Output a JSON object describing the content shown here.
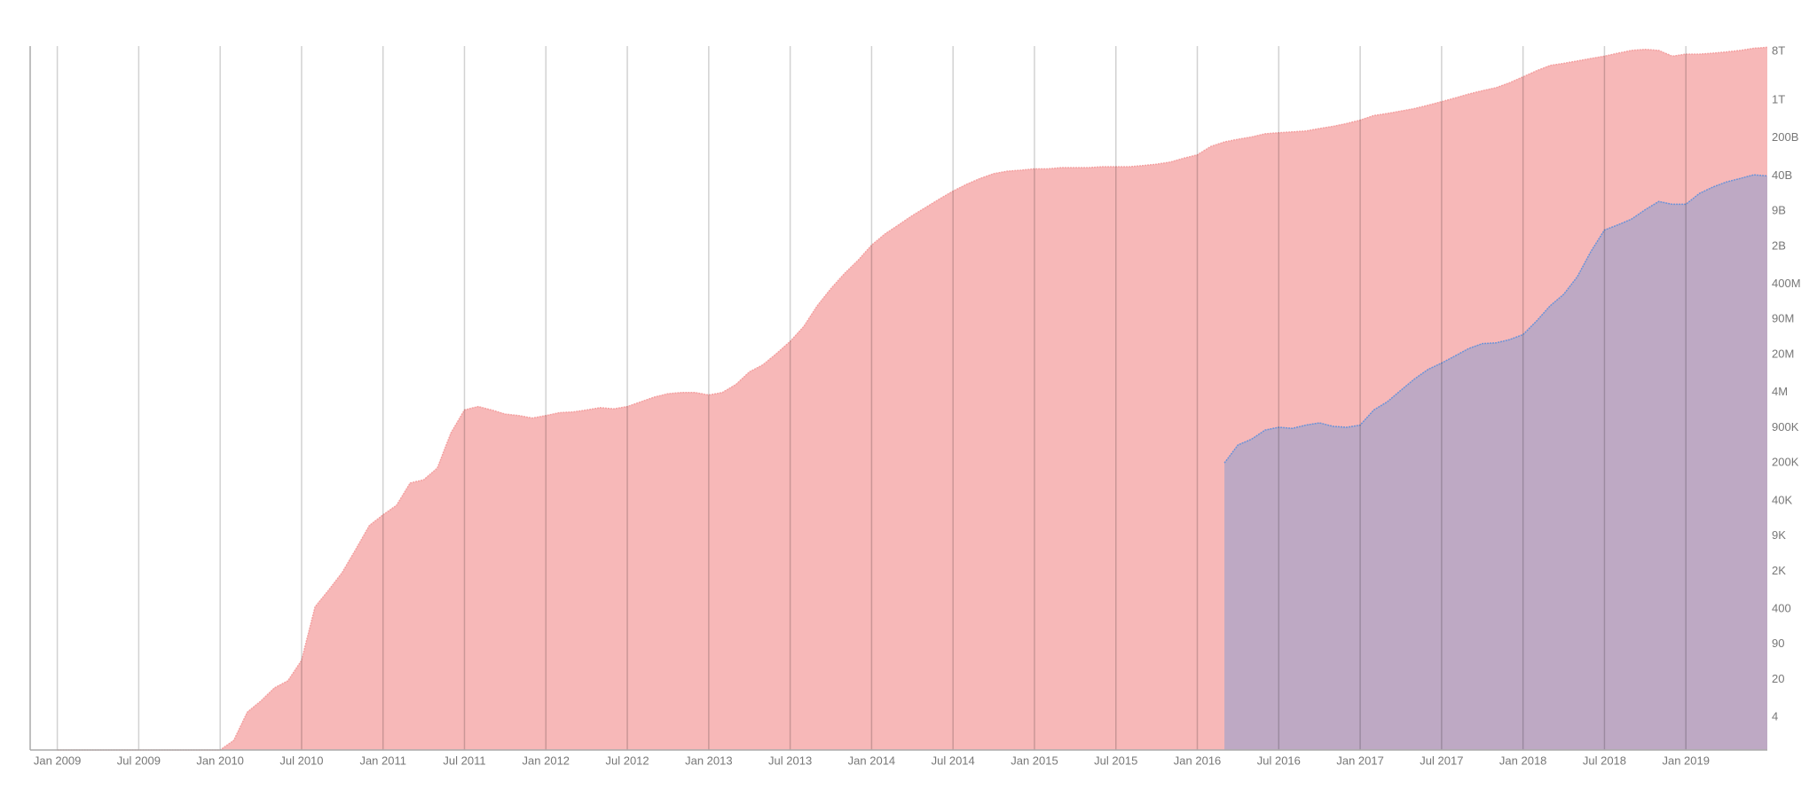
{
  "chart_data": {
    "type": "area",
    "x": [
      "2009-01",
      "2009-02",
      "2009-03",
      "2009-04",
      "2009-05",
      "2009-06",
      "2009-07",
      "2009-08",
      "2009-09",
      "2009-10",
      "2009-11",
      "2009-12",
      "2010-01",
      "2010-02",
      "2010-03",
      "2010-04",
      "2010-05",
      "2010-06",
      "2010-07",
      "2010-08",
      "2010-09",
      "2010-10",
      "2010-11",
      "2010-12",
      "2011-01",
      "2011-02",
      "2011-03",
      "2011-04",
      "2011-05",
      "2011-06",
      "2011-07",
      "2011-08",
      "2011-09",
      "2011-10",
      "2011-11",
      "2011-12",
      "2012-01",
      "2012-02",
      "2012-03",
      "2012-04",
      "2012-05",
      "2012-06",
      "2012-07",
      "2012-08",
      "2012-09",
      "2012-10",
      "2012-11",
      "2012-12",
      "2013-01",
      "2013-02",
      "2013-03",
      "2013-04",
      "2013-05",
      "2013-06",
      "2013-07",
      "2013-08",
      "2013-09",
      "2013-10",
      "2013-11",
      "2013-12",
      "2014-01",
      "2014-02",
      "2014-03",
      "2014-04",
      "2014-05",
      "2014-06",
      "2014-07",
      "2014-08",
      "2014-09",
      "2014-10",
      "2014-11",
      "2014-12",
      "2015-01",
      "2015-02",
      "2015-03",
      "2015-04",
      "2015-05",
      "2015-06",
      "2015-07",
      "2015-08",
      "2015-09",
      "2015-10",
      "2015-11",
      "2015-12",
      "2016-01",
      "2016-02",
      "2016-03",
      "2016-04",
      "2016-05",
      "2016-06",
      "2016-07",
      "2016-08",
      "2016-09",
      "2016-10",
      "2016-11",
      "2016-12",
      "2017-01",
      "2017-02",
      "2017-03",
      "2017-04",
      "2017-05",
      "2017-06",
      "2017-07",
      "2017-08",
      "2017-09",
      "2017-10",
      "2017-11",
      "2017-12",
      "2018-01",
      "2018-02",
      "2018-03",
      "2018-04",
      "2018-05",
      "2018-06",
      "2018-07",
      "2018-08",
      "2018-09",
      "2018-10",
      "2018-11",
      "2018-12",
      "2019-01",
      "2019-02",
      "2019-03",
      "2019-04",
      "2019-05",
      "2019-06",
      "2019-07"
    ],
    "series": [
      {
        "color": "#f4a0a0",
        "values": [
          1,
          1,
          1,
          1,
          1,
          1,
          1,
          1,
          1,
          1,
          1,
          1,
          1,
          1.5,
          5,
          8,
          14,
          19,
          45,
          440,
          900,
          1900,
          5100,
          14000,
          22000,
          33000,
          85000,
          98000,
          160000,
          710000,
          1900000,
          2200000,
          1900000,
          1600000,
          1500000,
          1350000,
          1500000,
          1700000,
          1750000,
          1900000,
          2100000,
          2000000,
          2200000,
          2700000,
          3300000,
          3800000,
          4000000,
          4000000,
          3600000,
          4000000,
          5600000,
          9600000,
          13000000,
          21000000,
          35000000,
          66000000,
          160000000,
          330000000,
          630000000,
          1100000000,
          2100000000.0,
          3400000000.0,
          5000000000.0,
          7400000000.0,
          10500000000.0,
          15000000000.0,
          21000000000.0,
          28000000000.0,
          36000000000.0,
          44000000000.0,
          49000000000.0,
          51000000000.0,
          54000000000.0,
          54000000000.0,
          57000000000.0,
          57000000000.0,
          57000000000.0,
          59000000000.0,
          59000000000.0,
          59000000000.0,
          62000000000.0,
          66000000000.0,
          72000000000.0,
          85000000000.0,
          98000000000.0,
          140000000000.0,
          170000000000.0,
          190000000000.0,
          210000000000.0,
          240000000000.0,
          250000000000.0,
          260000000000.0,
          270000000000.0,
          300000000000.0,
          330000000000.0,
          370000000000.0,
          430000000000.0,
          520000000000.0,
          570000000000.0,
          630000000000.0,
          700000000000.0,
          810000000000.0,
          940000000000.0,
          1100000000000.0,
          1300000000000.0,
          1500000000000.0,
          1700000000000.0,
          2100000000000.0,
          2700000000000.0,
          3500000000000.0,
          4400000000000.0,
          4800000000000.0,
          5300000000000.0,
          5900000000000.0,
          6500000000000.0,
          7400000000000.0,
          8300000000000.0,
          8700000000000.0,
          8300000000000.0,
          6500000000000.0,
          7100000000000.0,
          7100000000000.0,
          7400000000000.0,
          7800000000000.0,
          8300000000000.0,
          9100000000000.0,
          9500000000000.0
        ]
      },
      {
        "color": "#6a93d8",
        "values": [
          null,
          null,
          null,
          null,
          null,
          null,
          null,
          null,
          null,
          null,
          null,
          null,
          null,
          null,
          null,
          null,
          null,
          null,
          null,
          null,
          null,
          null,
          null,
          null,
          null,
          null,
          null,
          null,
          null,
          null,
          null,
          null,
          null,
          null,
          null,
          null,
          null,
          null,
          null,
          null,
          null,
          null,
          null,
          null,
          null,
          null,
          null,
          null,
          null,
          null,
          null,
          null,
          null,
          null,
          null,
          null,
          null,
          null,
          null,
          null,
          null,
          null,
          null,
          null,
          null,
          null,
          null,
          null,
          null,
          null,
          null,
          null,
          null,
          null,
          null,
          null,
          null,
          null,
          null,
          null,
          null,
          null,
          null,
          null,
          null,
          null,
          200000,
          430000,
          550000,
          810000,
          910000,
          870000,
          1000000,
          1100000,
          950000,
          910000,
          1000000,
          1900000,
          2700000,
          4400000,
          7100000,
          10700000,
          14000000,
          19000000,
          26000000,
          32000000,
          33000000,
          38000000,
          47000000,
          84000000,
          160000000,
          260000000,
          550000000,
          1600000000,
          4000000000,
          5000000000,
          6400000000,
          9500000000,
          13500000000,
          12000000000,
          12000000000,
          19000000000,
          25000000000,
          31000000000,
          36000000000,
          42000000000,
          40000000000
        ]
      }
    ],
    "xlim": [
      "2008-11",
      "2019-07"
    ],
    "xticks": [
      {
        "value": "2009-01",
        "label": "Jan 2009"
      },
      {
        "value": "2009-07",
        "label": "Jul 2009"
      },
      {
        "value": "2010-01",
        "label": "Jan 2010"
      },
      {
        "value": "2010-07",
        "label": "Jul 2010"
      },
      {
        "value": "2011-01",
        "label": "Jan 2011"
      },
      {
        "value": "2011-07",
        "label": "Jul 2011"
      },
      {
        "value": "2012-01",
        "label": "Jan 2012"
      },
      {
        "value": "2012-07",
        "label": "Jul 2012"
      },
      {
        "value": "2013-01",
        "label": "Jan 2013"
      },
      {
        "value": "2013-07",
        "label": "Jul 2013"
      },
      {
        "value": "2014-01",
        "label": "Jan 2014"
      },
      {
        "value": "2014-07",
        "label": "Jul 2014"
      },
      {
        "value": "2015-01",
        "label": "Jan 2015"
      },
      {
        "value": "2015-07",
        "label": "Jul 2015"
      },
      {
        "value": "2016-01",
        "label": "Jan 2016"
      },
      {
        "value": "2016-07",
        "label": "Jul 2016"
      },
      {
        "value": "2017-01",
        "label": "Jan 2017"
      },
      {
        "value": "2017-07",
        "label": "Jul 2017"
      },
      {
        "value": "2018-01",
        "label": "Jan 2018"
      },
      {
        "value": "2018-07",
        "label": "Jul 2018"
      },
      {
        "value": "2019-01",
        "label": "Jan 2019"
      }
    ],
    "ylim": [
      1,
      10000000000000
    ],
    "yscale": "log",
    "yticks": [
      4,
      20,
      90,
      400,
      {
        "value": 2000,
        "label": "2K"
      },
      {
        "value": 9000,
        "label": "9K"
      },
      {
        "value": 40000,
        "label": "40K"
      },
      {
        "value": 200000,
        "label": "200K"
      },
      {
        "value": 900000,
        "label": "900K"
      },
      {
        "value": 4000000,
        "label": "4M"
      },
      {
        "value": 20000000,
        "label": "20M"
      },
      {
        "value": 90000000,
        "label": "90M"
      },
      {
        "value": 400000000,
        "label": "400M"
      },
      {
        "value": 2000000000,
        "label": "2B"
      },
      {
        "value": 9000000000,
        "label": "9B"
      },
      {
        "value": 40000000000,
        "label": "40B"
      },
      {
        "value": 200000000000,
        "label": "200B"
      },
      {
        "value": 1000000000000,
        "label": "1T"
      },
      {
        "value": 8000000000000,
        "label": "8T"
      }
    ],
    "grid": "x"
  }
}
